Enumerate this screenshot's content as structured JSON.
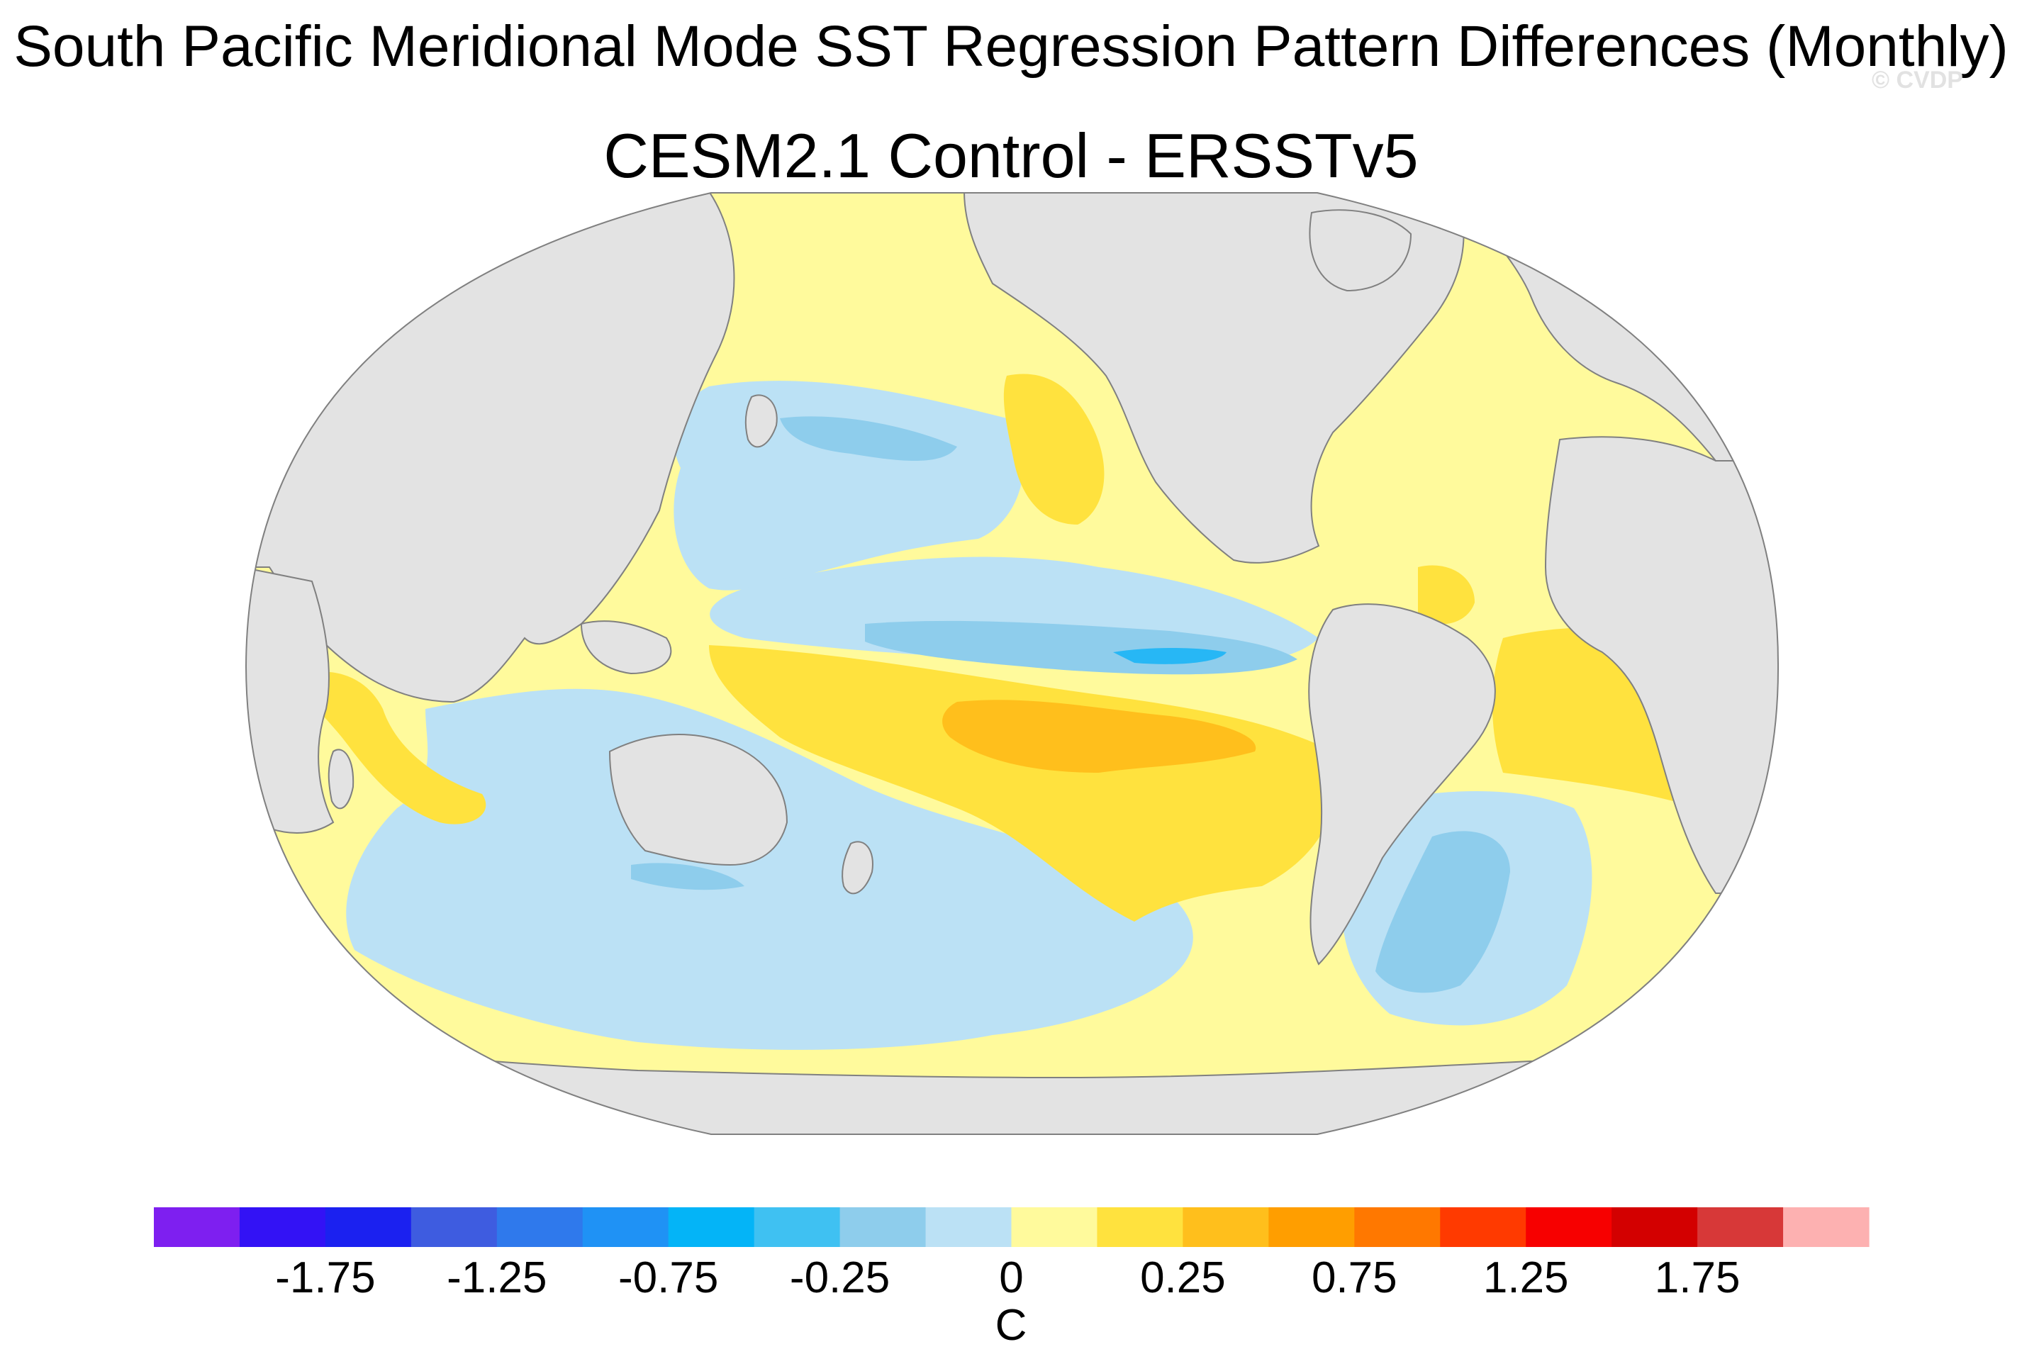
{
  "figure": {
    "title": "South Pacific Meridional Mode SST Regression Pattern Differences (Monthly)",
    "subtitle": "CESM2.1 Control - ERSSTv5",
    "watermark": "© CVDP"
  },
  "map": {
    "projection": "Robinson (Pacific-centered)",
    "land_color": "#e3e3e3",
    "coast_color": "#808080",
    "regions": [
      {
        "name": "central-north-pacific-negative",
        "level": "-0.25 to 0",
        "color": "#bbe1f5"
      },
      {
        "name": "kuroshio-extension-negative",
        "level": "-0.5 to -0.25",
        "color": "#8ecdec"
      },
      {
        "name": "equatorial-pacific-minimum",
        "level": "-0.75 to -0.5",
        "color": "#27b7f5"
      },
      {
        "name": "southeast-pacific-positive",
        "level": "0.25 to 0.5",
        "color": "#ffbf1c"
      },
      {
        "name": "tropical-atlantic-positive",
        "level": "0 to 0.25",
        "color": "#ffe23e"
      },
      {
        "name": "south-atlantic-negative",
        "level": "-0.5 to -0.25",
        "color": "#8ecdec"
      }
    ]
  },
  "colorbar": {
    "unit": "C",
    "colors": [
      "#7e1ff0",
      "#3312f5",
      "#1b21f0",
      "#3e5ce0",
      "#2f79ec",
      "#1f92f5",
      "#04b4f7",
      "#3fc1f2",
      "#8ecdec",
      "#bbe1f5",
      "#fffa9c",
      "#ffe23e",
      "#ffbf1c",
      "#ff9e00",
      "#ff7800",
      "#ff3a00",
      "#f70000",
      "#d30000",
      "#d73838",
      "#fdb1b1"
    ],
    "tick_labels": [
      "-1.75",
      "-1.25",
      "-0.75",
      "-0.25",
      "0",
      "0.25",
      "0.75",
      "1.25",
      "1.75"
    ],
    "tick_boundary_index": [
      2,
      4,
      6,
      8,
      10,
      12,
      14,
      16,
      18
    ]
  }
}
